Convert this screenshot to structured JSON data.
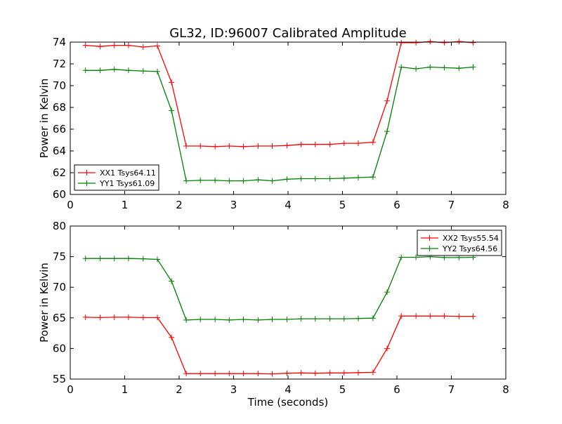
{
  "figure": {
    "title": "GL32, ID:96007 Calibrated Amplitude"
  },
  "chart_data": [
    {
      "type": "line",
      "ylabel": "Power in Kelvin",
      "xlabel": "",
      "xlim": [
        0,
        8
      ],
      "ylim": [
        60,
        74
      ],
      "xticks": [
        0,
        1,
        2,
        3,
        4,
        5,
        6,
        7,
        8
      ],
      "yticks": [
        60,
        62,
        64,
        66,
        68,
        70,
        72,
        74
      ],
      "grid": false,
      "legend_position": "lower-left",
      "x": [
        0.28,
        0.55,
        0.81,
        1.07,
        1.34,
        1.6,
        1.86,
        2.13,
        2.39,
        2.66,
        2.92,
        3.18,
        3.45,
        3.71,
        3.98,
        4.24,
        4.5,
        4.77,
        5.03,
        5.29,
        5.56,
        5.82,
        6.08,
        6.35,
        6.61,
        6.87,
        7.14,
        7.4
      ],
      "series": [
        {
          "name": "XX1 Tsys64.11",
          "color": "#ff0000",
          "values": [
            73.7,
            73.6,
            73.7,
            73.7,
            73.55,
            73.65,
            70.3,
            64.45,
            64.45,
            64.4,
            64.45,
            64.4,
            64.45,
            64.45,
            64.5,
            64.6,
            64.6,
            64.6,
            64.7,
            64.7,
            64.8,
            68.6,
            73.95,
            73.95,
            74.05,
            73.95,
            74.05,
            73.95
          ]
        },
        {
          "name": "YY1 Tsys61.09",
          "color": "#008000",
          "values": [
            71.4,
            71.4,
            71.5,
            71.4,
            71.35,
            71.3,
            67.7,
            61.25,
            61.3,
            61.3,
            61.25,
            61.25,
            61.35,
            61.25,
            61.4,
            61.45,
            61.45,
            61.45,
            61.5,
            61.55,
            61.6,
            65.8,
            71.7,
            71.55,
            71.7,
            71.65,
            71.6,
            71.7
          ]
        }
      ]
    },
    {
      "type": "line",
      "ylabel": "Power in Kelvin",
      "xlabel": "Time (seconds)",
      "xlim": [
        0,
        8
      ],
      "ylim": [
        55,
        80
      ],
      "xticks": [
        0,
        1,
        2,
        3,
        4,
        5,
        6,
        7,
        8
      ],
      "yticks": [
        55,
        60,
        65,
        70,
        75,
        80
      ],
      "grid": false,
      "legend_position": "upper-right",
      "x": [
        0.28,
        0.55,
        0.81,
        1.07,
        1.34,
        1.6,
        1.86,
        2.13,
        2.39,
        2.66,
        2.92,
        3.18,
        3.45,
        3.71,
        3.98,
        4.24,
        4.5,
        4.77,
        5.03,
        5.29,
        5.56,
        5.82,
        6.08,
        6.35,
        6.61,
        6.87,
        7.14,
        7.4
      ],
      "series": [
        {
          "name": "XX2 Tsys55.54",
          "color": "#ff0000",
          "values": [
            65.1,
            65.05,
            65.1,
            65.1,
            65.05,
            65.05,
            61.8,
            55.9,
            55.9,
            55.9,
            55.9,
            55.9,
            55.9,
            55.85,
            55.95,
            56.0,
            55.95,
            56.0,
            56.0,
            56.05,
            56.1,
            60.0,
            65.3,
            65.3,
            65.3,
            65.3,
            65.25,
            65.25
          ]
        },
        {
          "name": "YY2 Tsys64.56",
          "color": "#008000",
          "values": [
            74.7,
            74.7,
            74.7,
            74.7,
            74.65,
            74.55,
            71.0,
            64.65,
            64.75,
            64.75,
            64.65,
            64.75,
            64.65,
            64.75,
            64.75,
            64.85,
            64.85,
            64.85,
            64.85,
            64.9,
            64.95,
            69.2,
            74.9,
            74.9,
            75.0,
            74.85,
            74.85,
            74.9
          ]
        }
      ]
    }
  ]
}
